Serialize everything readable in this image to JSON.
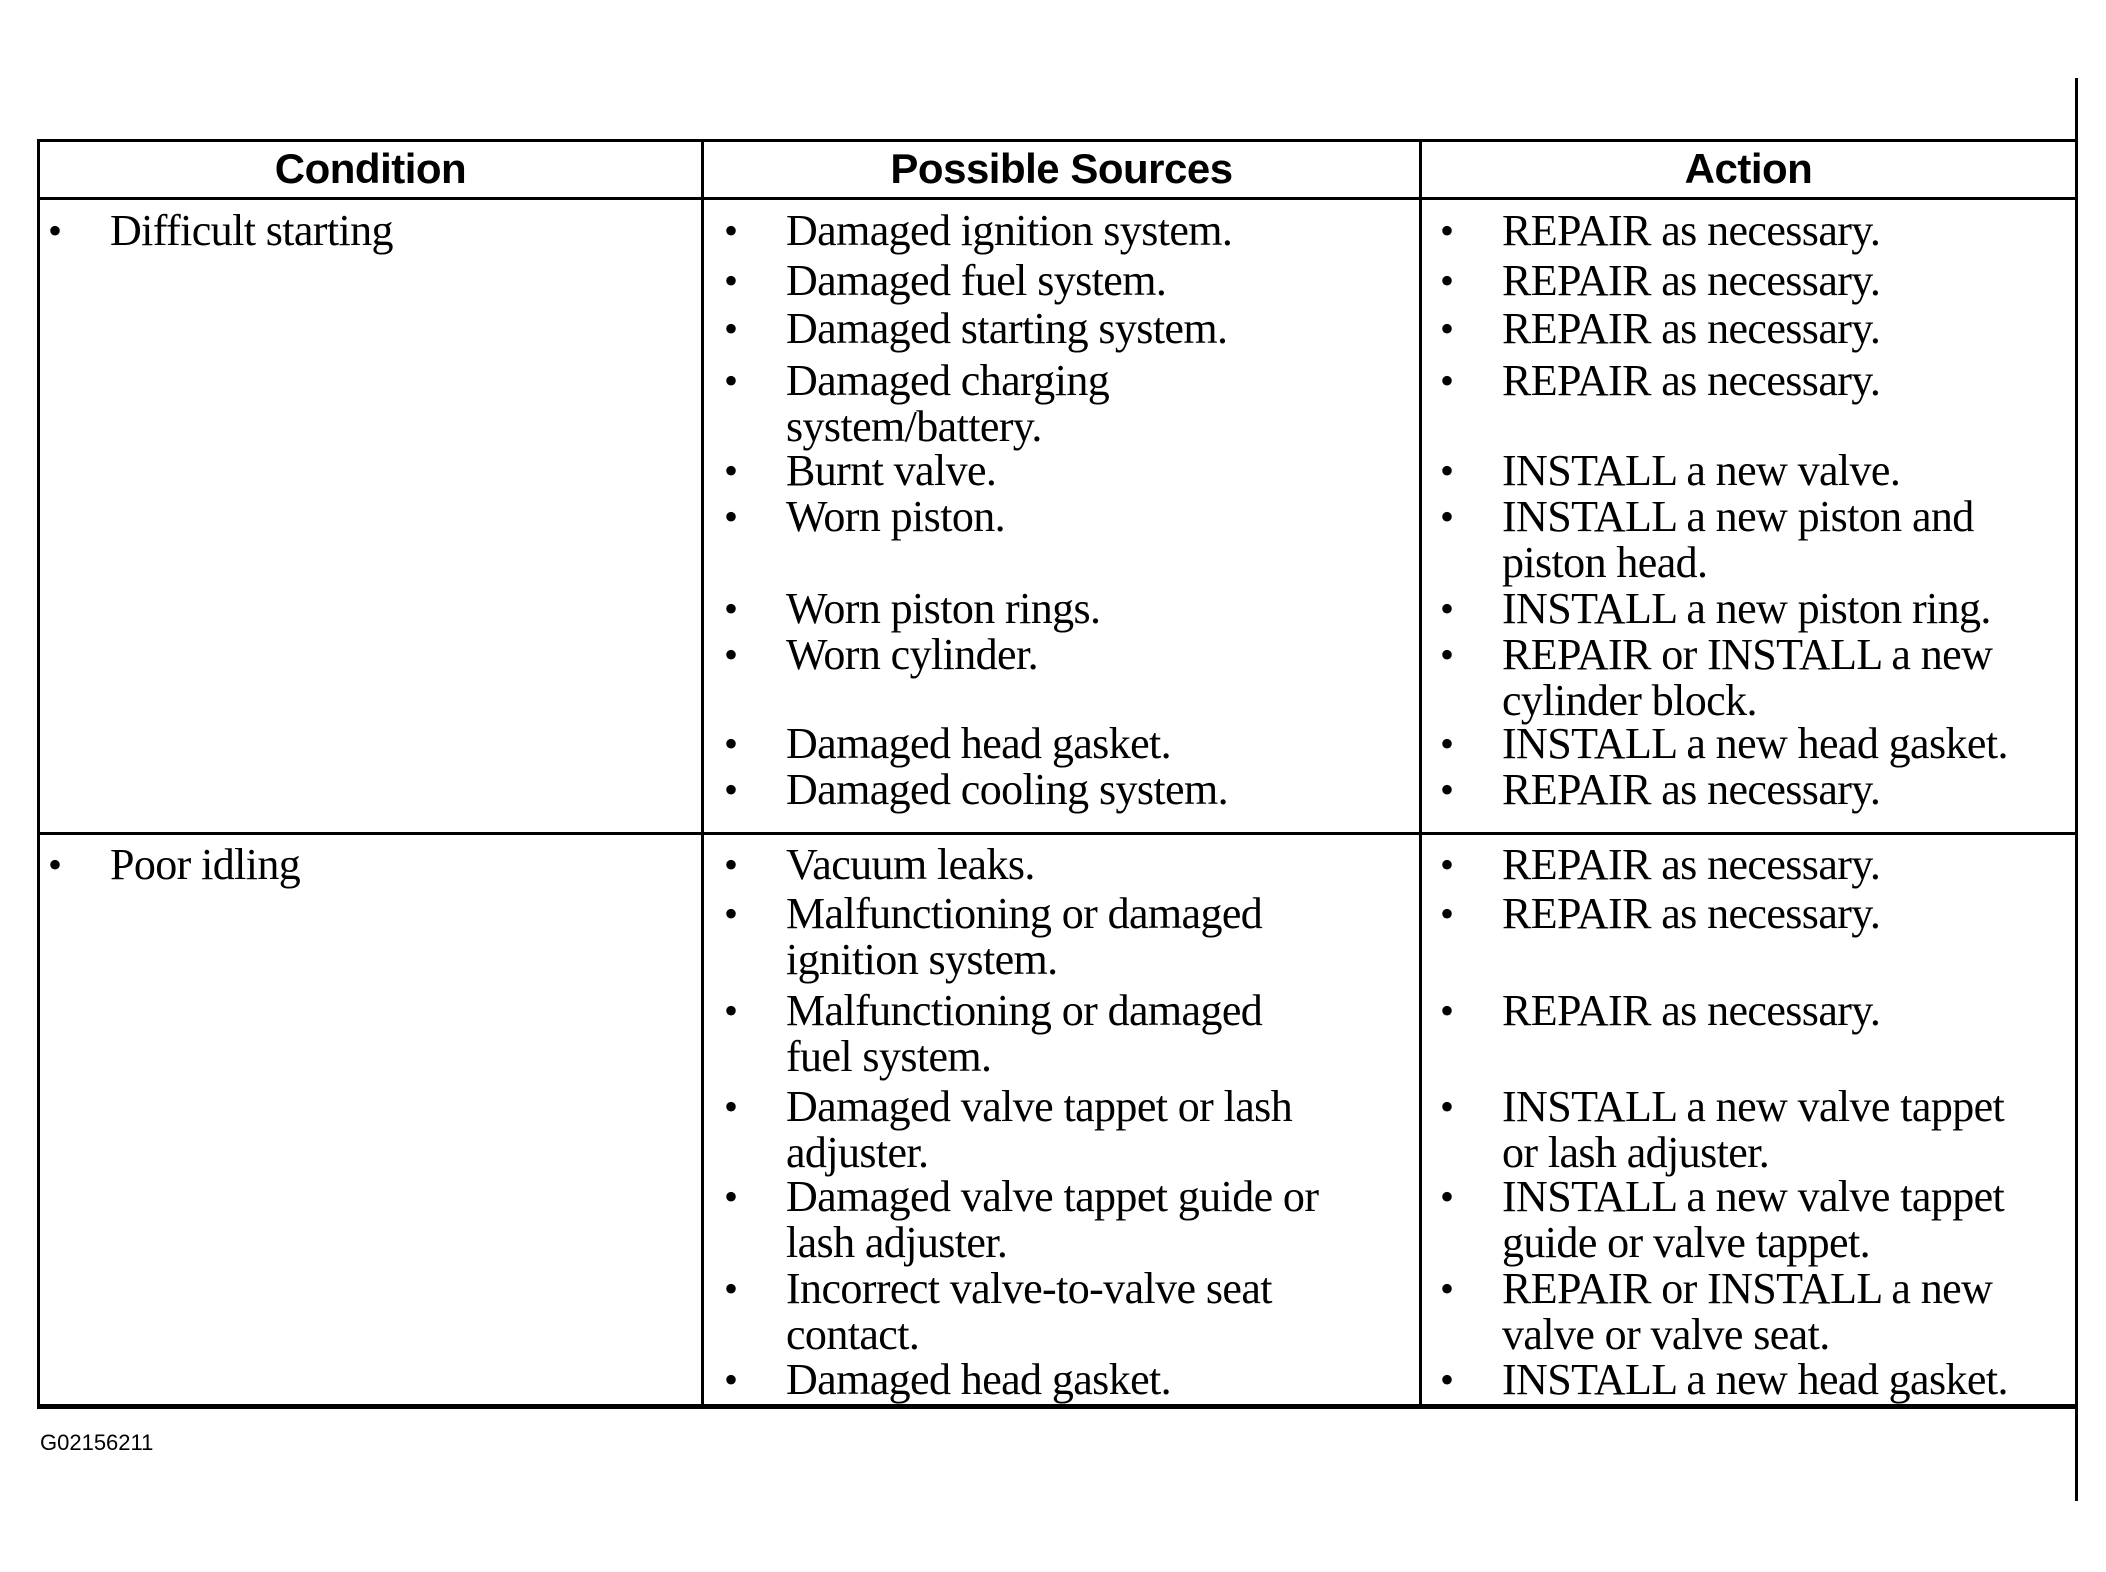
{
  "table": {
    "headers": [
      "Condition",
      "Possible Sources",
      "Action"
    ],
    "rows": [
      {
        "condition": "Difficult starting",
        "sources": [
          "Damaged ignition system.",
          "Damaged fuel system.",
          "Damaged starting system.",
          "Damaged charging\nsystem/battery.",
          "Burnt valve.",
          "Worn piston.",
          "Worn piston rings.",
          "Worn cylinder.",
          "Damaged head gasket.",
          "Damaged cooling system."
        ],
        "actions": [
          "REPAIR as necessary.",
          "REPAIR as necessary.",
          "REPAIR as necessary.",
          "REPAIR as necessary.",
          "INSTALL a new valve.",
          "INSTALL a new piston and\npiston head.",
          "INSTALL a new piston ring.",
          "REPAIR or INSTALL a new\ncylinder block.",
          "INSTALL a new head gasket.",
          "REPAIR as necessary."
        ]
      },
      {
        "condition": "Poor idling",
        "sources": [
          "Vacuum leaks.",
          "Malfunctioning or damaged\nignition system.",
          "Malfunctioning or damaged\nfuel system.",
          "Damaged valve tappet or lash\nadjuster.",
          "Damaged valve tappet guide or\nlash adjuster.",
          "Incorrect valve-to-valve seat\ncontact.",
          "Damaged head gasket."
        ],
        "actions": [
          "REPAIR as necessary.",
          "REPAIR as necessary.",
          "REPAIR as necessary.",
          "INSTALL a new valve tappet\nor lash adjuster.",
          "INSTALL a new valve tappet\nguide or valve tappet.",
          "REPAIR or INSTALL a new\nvalve or valve seat.",
          "INSTALL a new head gasket."
        ]
      }
    ]
  },
  "figure_id": "G02156211"
}
